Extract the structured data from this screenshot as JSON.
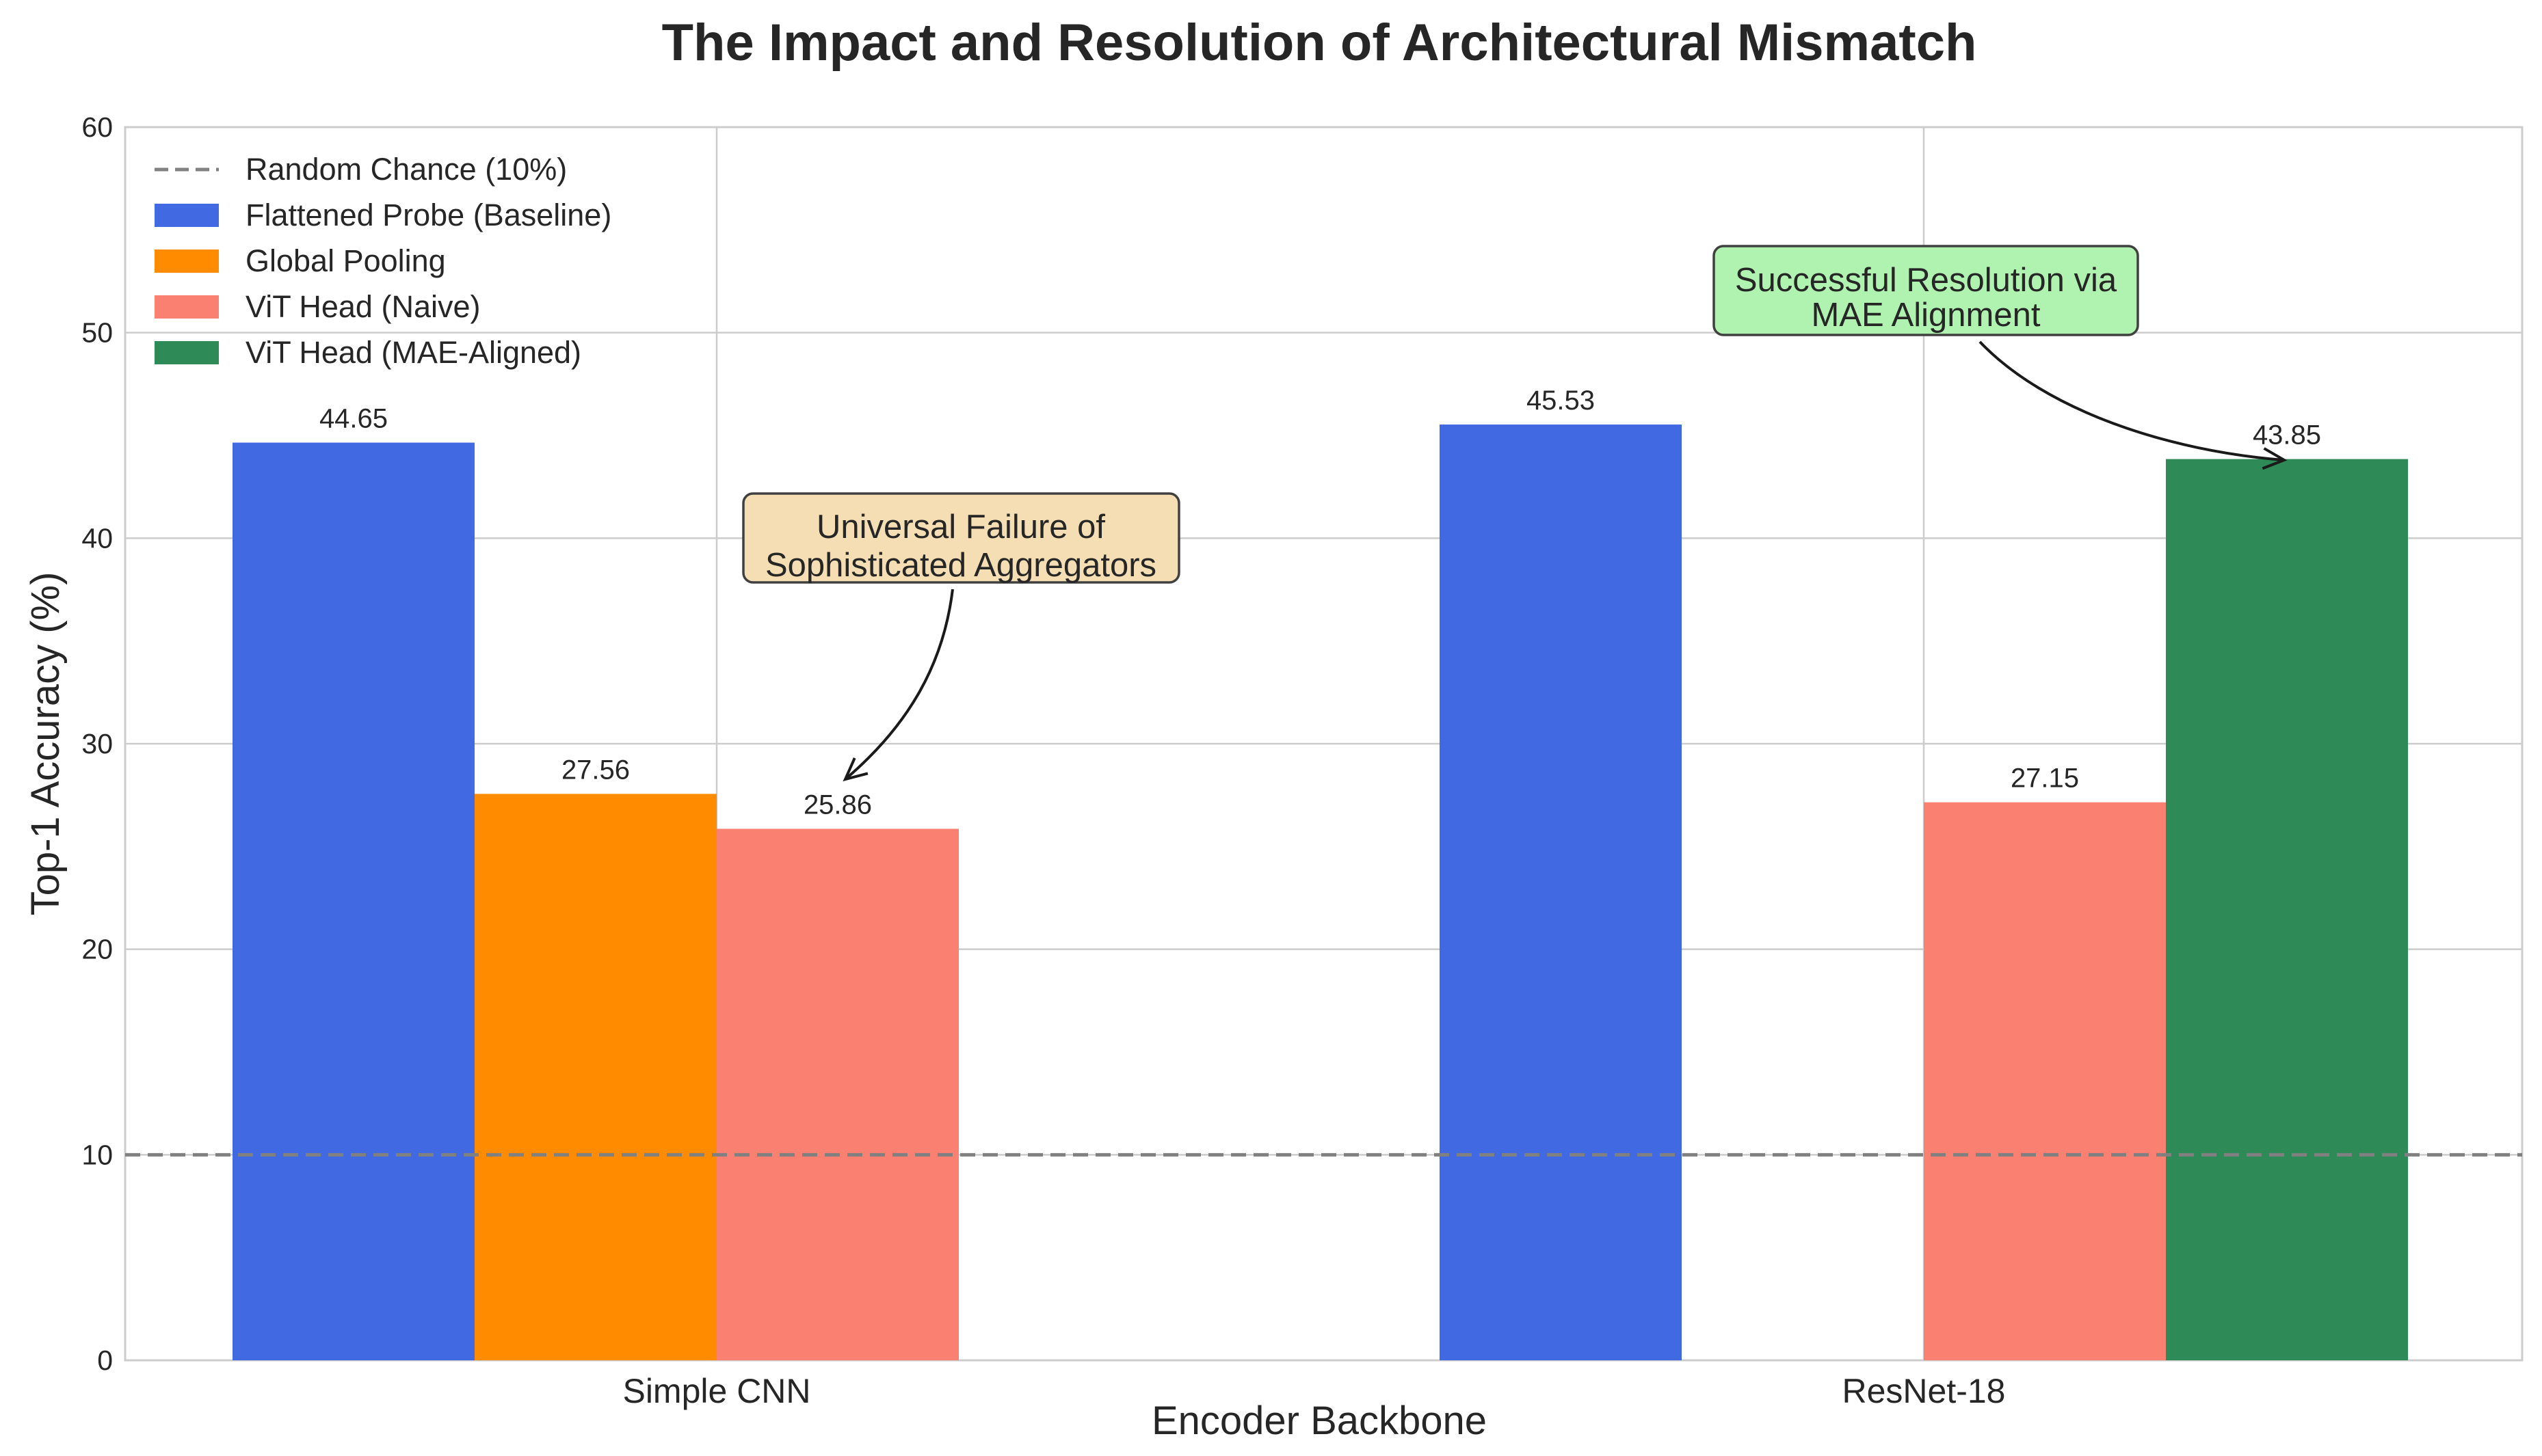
{
  "chart_data": {
    "type": "bar",
    "title": "The Impact and Resolution of Architectural Mismatch",
    "xlabel": "Encoder Backbone",
    "ylabel": "Top-1 Accuracy (%)",
    "ylim": [
      0,
      60
    ],
    "yticks": [
      0,
      10,
      20,
      30,
      40,
      50,
      60
    ],
    "categories": [
      "Simple CNN",
      "ResNet-18"
    ],
    "grid": true,
    "legend_position": "top-left",
    "series": [
      {
        "name": "Flattened Probe (Baseline)",
        "color": "#4169e1",
        "values": [
          44.65,
          45.53
        ]
      },
      {
        "name": "Global Pooling",
        "color": "#ff8c00",
        "values": [
          27.56,
          null
        ]
      },
      {
        "name": "ViT Head (Naive)",
        "color": "#fa8072",
        "values": [
          25.86,
          27.15
        ]
      },
      {
        "name": "ViT Head (MAE-Aligned)",
        "color": "#2e8b57",
        "values": [
          null,
          43.85
        ]
      }
    ],
    "data_labels": [
      [
        "44.65",
        "45.53"
      ],
      [
        "27.56",
        ""
      ],
      [
        "25.86",
        "27.15"
      ],
      [
        "",
        "43.85"
      ]
    ],
    "reference_line": {
      "name": "Random Chance (10%)",
      "value": 10,
      "color": "#808080",
      "style": "dashed"
    },
    "annotations": [
      {
        "lines": [
          "Universal Failure of",
          "Sophisticated Aggregators"
        ],
        "points_to": {
          "category": "Simple CNN",
          "series": "ViT Head (Naive)",
          "value": 25.86
        },
        "box_color": "#f5deb3"
      },
      {
        "lines": [
          "Successful Resolution via",
          "MAE Alignment"
        ],
        "points_to": {
          "category": "ResNet-18",
          "series": "ViT Head (MAE-Aligned)",
          "value": 43.85
        },
        "box_color": "#b0f2b0"
      }
    ]
  }
}
